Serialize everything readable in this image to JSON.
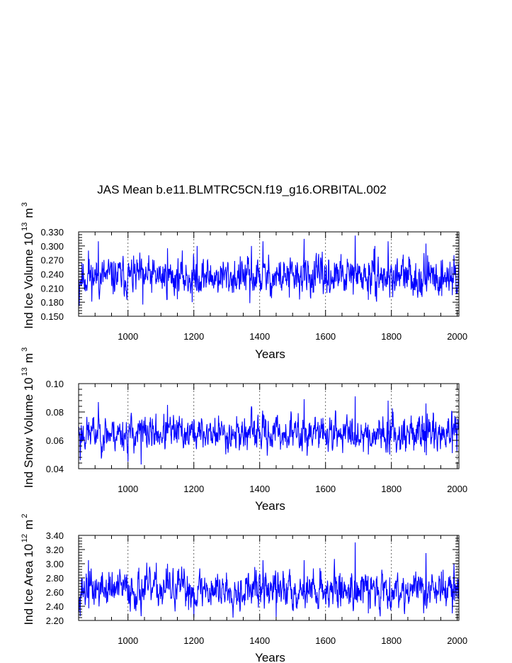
{
  "title": "JAS Mean b.e11.BLMTRC5CN.f19_g16.ORBITAL.002",
  "colors": {
    "series": "#0000ff",
    "axis": "#000000",
    "grid": "#444444"
  },
  "chart_data": [
    {
      "type": "line",
      "name": "ice-volume",
      "title": "JAS Mean b.e11.BLMTRC5CN.f19_g16.ORBITAL.002",
      "xlabel": "Years",
      "ylabel_main": "Ind Ice Volume 10",
      "ylabel_exp": "13",
      "ylabel_unit_main": "m",
      "ylabel_unit_exp": "3",
      "xlim": [
        850,
        2005
      ],
      "ylim": [
        0.15,
        0.33
      ],
      "xticks": [
        1000,
        1200,
        1400,
        1600,
        1800,
        2000
      ],
      "xtick_labels": [
        "1000",
        "1200",
        "1400",
        "1600",
        "1800",
        "2000"
      ],
      "yticks": [
        0.15,
        0.18,
        0.21,
        0.24,
        0.27,
        0.3,
        0.33
      ],
      "ytick_labels": [
        "0.150",
        "0.180",
        "0.210",
        "0.240",
        "0.270",
        "0.300",
        "0.330"
      ],
      "grid_x": true,
      "series": [
        {
          "name": "Ind Ice Volume",
          "mean": 0.234,
          "spread": 0.018,
          "min": 0.172,
          "max": 0.322,
          "seed": 11
        }
      ],
      "peaks": [
        [
          850,
          0.2
        ],
        [
          880,
          0.29
        ],
        [
          910,
          0.31
        ],
        [
          1120,
          0.295
        ],
        [
          1210,
          0.3
        ],
        [
          1375,
          0.3
        ],
        [
          1410,
          0.31
        ],
        [
          1535,
          0.315
        ],
        [
          1690,
          0.322
        ],
        [
          1750,
          0.3
        ],
        [
          1790,
          0.31
        ],
        [
          1905,
          0.305
        ],
        [
          1990,
          0.28
        ]
      ],
      "troughs": [
        [
          852,
          0.172
        ],
        [
          1045,
          0.175
        ],
        [
          1195,
          0.18
        ],
        [
          1370,
          0.178
        ],
        [
          1490,
          0.19
        ],
        [
          1730,
          0.185
        ],
        [
          1795,
          0.19
        ],
        [
          1985,
          0.195
        ]
      ]
    },
    {
      "type": "line",
      "name": "snow-volume",
      "xlabel": "Years",
      "ylabel_main": "Ind Snow Volume 10",
      "ylabel_exp": "13",
      "ylabel_unit_main": "m",
      "ylabel_unit_exp": "3",
      "xlim": [
        850,
        2005
      ],
      "ylim": [
        0.04,
        0.1
      ],
      "xticks": [
        1000,
        1200,
        1400,
        1600,
        1800,
        2000
      ],
      "xtick_labels": [
        "1000",
        "1200",
        "1400",
        "1600",
        "1800",
        "2000"
      ],
      "yticks": [
        0.04,
        0.06,
        0.08,
        0.1
      ],
      "ytick_labels": [
        "0.04",
        "0.06",
        "0.08",
        "0.10"
      ],
      "grid_x": true,
      "series": [
        {
          "name": "Ind Snow Volume",
          "mean": 0.065,
          "spread": 0.0055,
          "min": 0.043,
          "max": 0.091,
          "seed": 23
        }
      ],
      "peaks": [
        [
          910,
          0.087
        ],
        [
          1120,
          0.085
        ],
        [
          1375,
          0.084
        ],
        [
          1535,
          0.089
        ],
        [
          1690,
          0.091
        ],
        [
          1790,
          0.088
        ],
        [
          1905,
          0.086
        ]
      ],
      "troughs": [
        [
          855,
          0.046
        ],
        [
          1000,
          0.045
        ],
        [
          1040,
          0.043
        ],
        [
          1730,
          0.05
        ],
        [
          1795,
          0.05
        ],
        [
          1985,
          0.051
        ]
      ]
    },
    {
      "type": "line",
      "name": "ice-area",
      "xlabel": "Years",
      "ylabel_main": "Ind Ice Area 10",
      "ylabel_exp": "12",
      "ylabel_unit_main": "m",
      "ylabel_unit_exp": "2",
      "xlim": [
        850,
        2005
      ],
      "ylim": [
        2.2,
        3.4
      ],
      "xticks": [
        1000,
        1200,
        1400,
        1600,
        1800,
        2000
      ],
      "xtick_labels": [
        "1000",
        "1200",
        "1400",
        "1600",
        "1800",
        "2000"
      ],
      "yticks": [
        2.2,
        2.4,
        2.6,
        2.8,
        3.0,
        3.2,
        3.4
      ],
      "ytick_labels": [
        "2.20",
        "2.40",
        "2.60",
        "2.80",
        "3.00",
        "3.20",
        "3.40"
      ],
      "grid_x": true,
      "series": [
        {
          "name": "Ind Ice Area",
          "mean": 2.64,
          "spread": 0.12,
          "min": 2.24,
          "max": 3.3,
          "seed": 37
        }
      ],
      "peaks": [
        [
          880,
          3.05
        ],
        [
          1120,
          3.0
        ],
        [
          1410,
          3.05
        ],
        [
          1535,
          3.05
        ],
        [
          1690,
          3.3
        ],
        [
          1905,
          3.15
        ],
        [
          1990,
          3.0
        ]
      ],
      "troughs": [
        [
          855,
          2.26
        ],
        [
          1040,
          2.26
        ],
        [
          1200,
          2.25
        ],
        [
          1450,
          2.25
        ],
        [
          1730,
          2.3
        ],
        [
          1985,
          2.3
        ]
      ]
    }
  ]
}
